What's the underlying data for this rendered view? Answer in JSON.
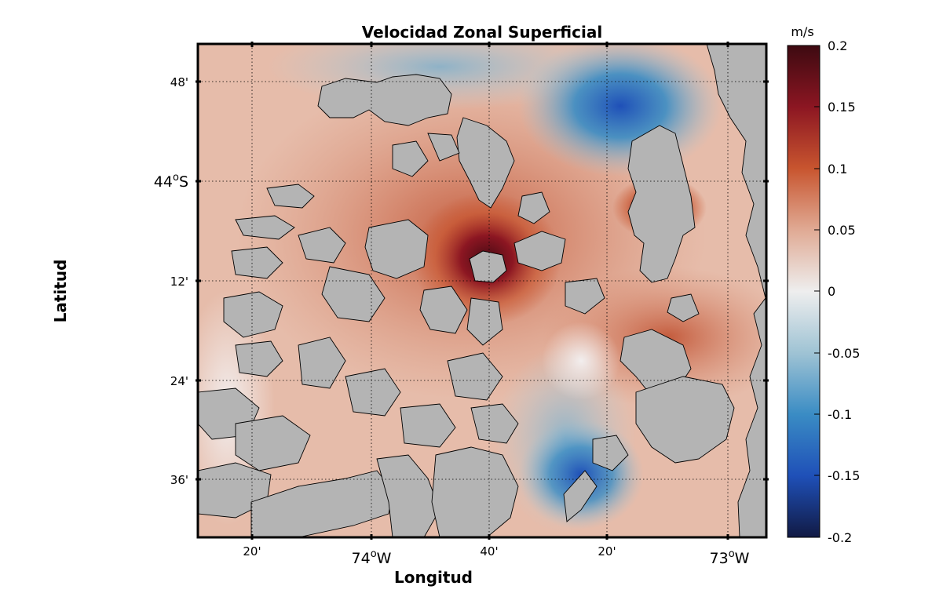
{
  "title": "Velocidad Zonal Superficial",
  "xlabel": "Longitud",
  "ylabel": "Latitud",
  "x_ticks": [
    {
      "label": "20'",
      "major": false
    },
    {
      "label": "74°W",
      "major": true,
      "deg": "74",
      "sup": "o",
      "hemi": "W"
    },
    {
      "label": "40'",
      "major": false
    },
    {
      "label": "20'",
      "major": false
    },
    {
      "label": "73°W",
      "major": true,
      "deg": "73",
      "sup": "o",
      "hemi": "W"
    }
  ],
  "y_ticks": [
    {
      "label": "48'",
      "major": false
    },
    {
      "label": "44°S",
      "major": true,
      "deg": "44",
      "sup": "o",
      "hemi": "S"
    },
    {
      "label": "12'",
      "major": false
    },
    {
      "label": "24'",
      "major": false
    },
    {
      "label": "36'",
      "major": false
    }
  ],
  "colorbar": {
    "unit": "m/s",
    "ticks": [
      "0.2",
      "0.15",
      "0.1",
      "0.05",
      "0",
      "-0.05",
      "-0.1",
      "-0.15",
      "-0.2"
    ],
    "range": [
      -0.2,
      0.2
    ],
    "colormap": "diverging blue-white-red",
    "colors": [
      "#111a44",
      "#1f50b8",
      "#3a8cc4",
      "#9fc3d4",
      "#eeeeee",
      "#e0aa94",
      "#c8552f",
      "#8c1622",
      "#3d0a11"
    ]
  },
  "colors": {
    "land": "#b4b4b4",
    "frame": "#000000",
    "grid": "#000000"
  }
}
